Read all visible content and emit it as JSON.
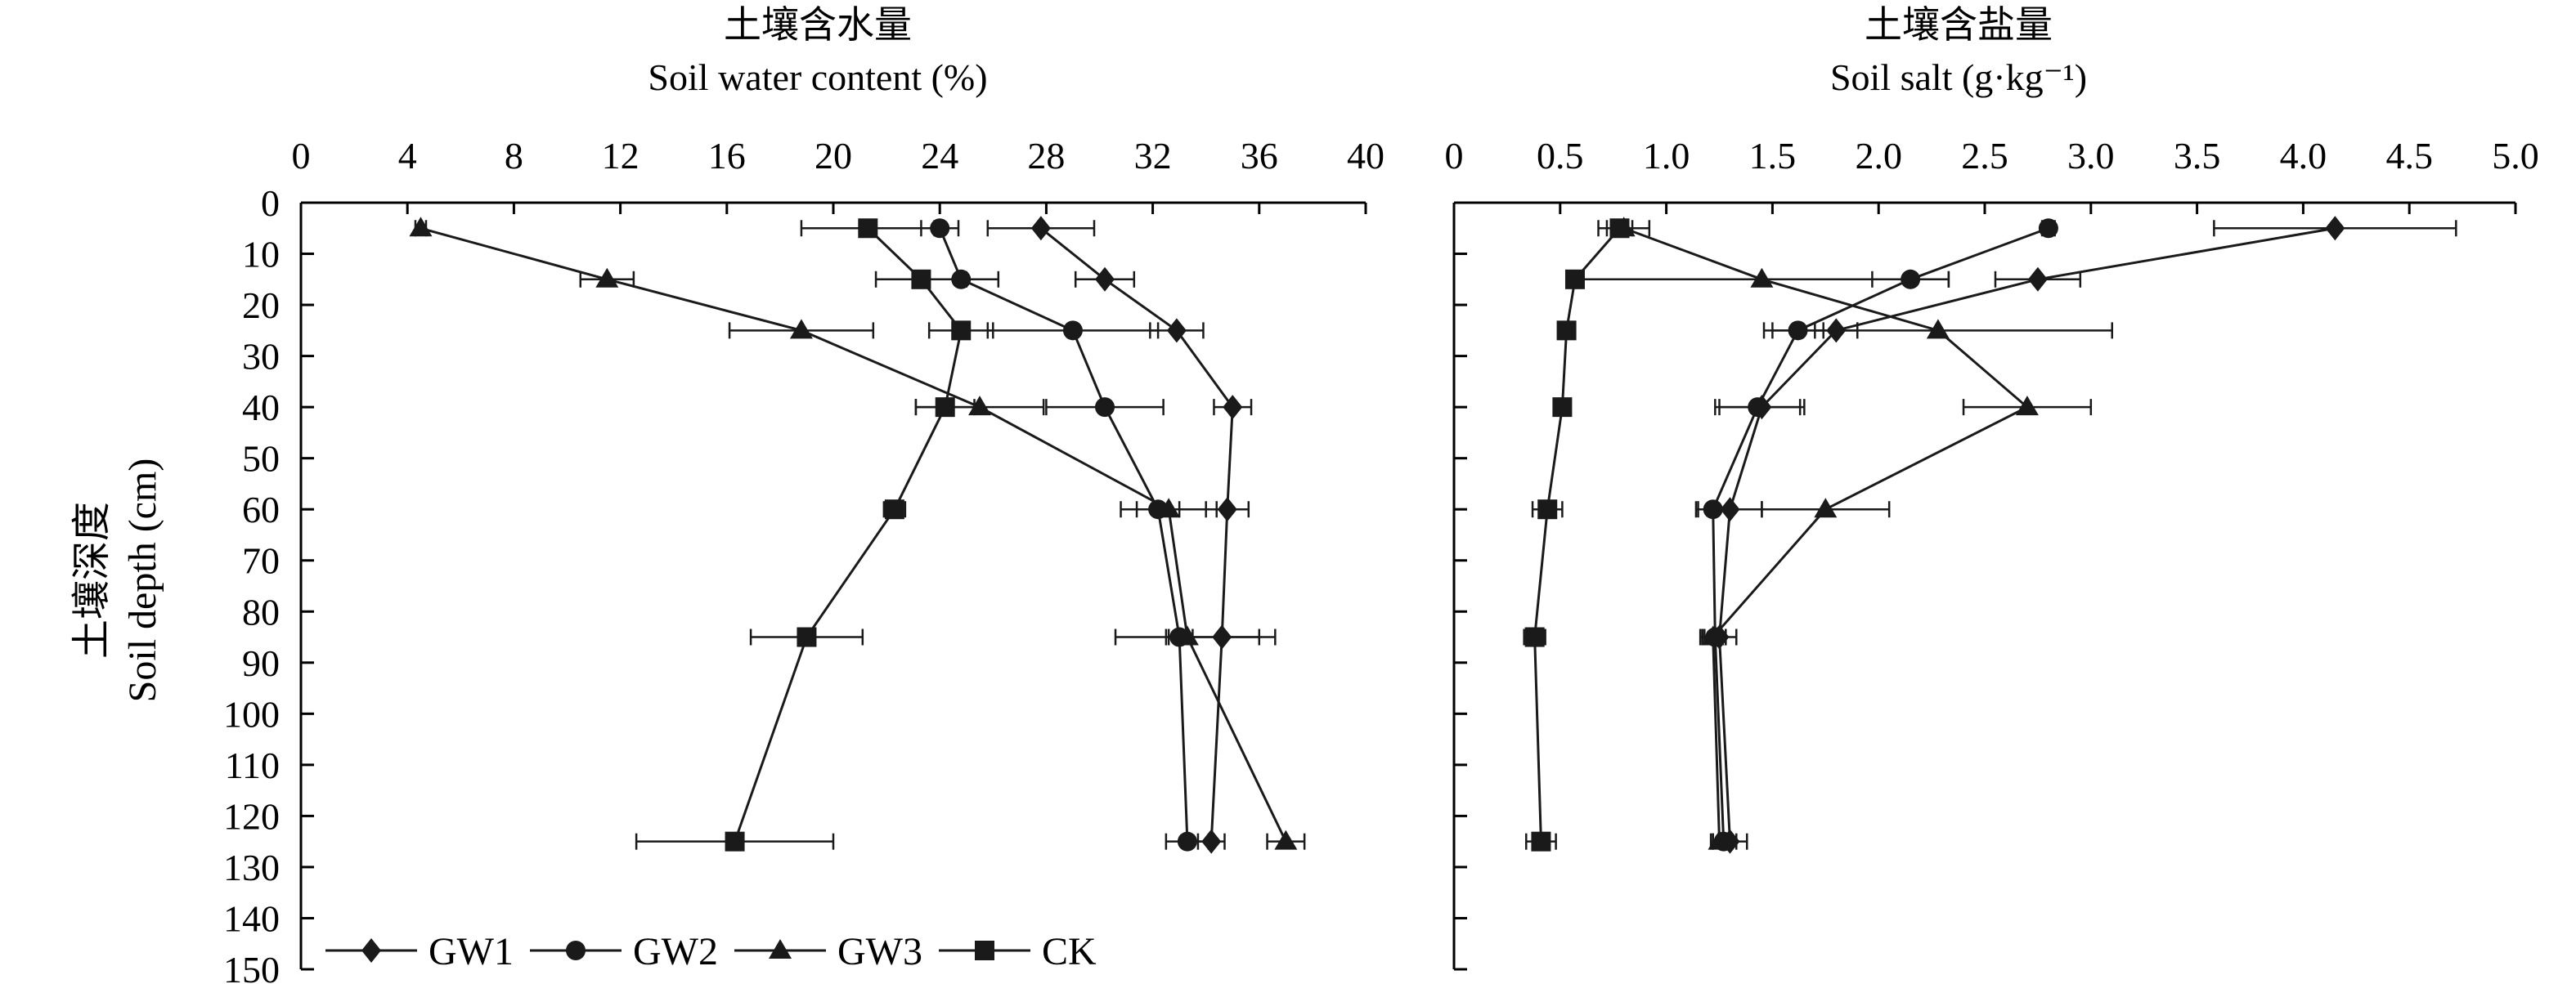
{
  "shared": {
    "ylabel_cn": "土壤深度",
    "ylabel_en": "Soil depth (cm)",
    "depth_ticks": [
      "0",
      "10",
      "20",
      "30",
      "40",
      "50",
      "60",
      "70",
      "80",
      "90",
      "100",
      "110",
      "120",
      "130",
      "140",
      "150"
    ]
  },
  "legend": [
    "GW1",
    "GW2",
    "GW3",
    "CK"
  ],
  "chart_data": [
    {
      "type": "line",
      "orientation": "depth-profile (x = value, y = depth, inverted)",
      "title_cn": "土壤含水量",
      "title_en": "Soil water content (%)",
      "xlim": [
        0,
        40
      ],
      "ylim": [
        0,
        150
      ],
      "x_ticks": [
        "0",
        "4",
        "8",
        "12",
        "16",
        "20",
        "24",
        "28",
        "32",
        "36",
        "40"
      ],
      "depths": [
        5,
        15,
        25,
        40,
        60,
        85,
        125
      ],
      "series": [
        {
          "name": "GW1",
          "marker": "diamond",
          "values": [
            27.8,
            30.2,
            32.9,
            35.0,
            34.8,
            34.6,
            34.2
          ],
          "errors": [
            2.0,
            1.1,
            1.0,
            0.7,
            0.8,
            2.0,
            0.5
          ]
        },
        {
          "name": "GW2",
          "marker": "circle",
          "values": [
            24.0,
            24.8,
            29.0,
            30.2,
            32.2,
            33.0,
            33.3
          ],
          "errors": [
            0.7,
            1.4,
            3.2,
            2.2,
            0.8,
            0.5,
            0.8
          ]
        },
        {
          "name": "GW3",
          "marker": "triangle",
          "values": [
            4.5,
            11.5,
            18.8,
            25.5,
            32.6,
            33.3,
            37.0
          ],
          "errors": [
            0.2,
            1.0,
            2.7,
            2.4,
            1.8,
            2.7,
            0.7
          ]
        },
        {
          "name": "CK",
          "marker": "square",
          "values": [
            21.3,
            23.3,
            24.8,
            24.2,
            22.3,
            19.0,
            16.3
          ],
          "errors": [
            2.5,
            1.7,
            1.2,
            1.1,
            0.4,
            2.1,
            3.7
          ]
        }
      ]
    },
    {
      "type": "line",
      "orientation": "depth-profile (x = value, y = depth, inverted)",
      "title_cn": "土壤含盐量",
      "title_en": "Soil salt (g·kg⁻¹)",
      "xlim": [
        0,
        5.0
      ],
      "ylim": [
        0,
        150
      ],
      "x_ticks": [
        "0",
        "0.5",
        "1.0",
        "1.5",
        "2.0",
        "2.5",
        "3.0",
        "3.5",
        "4.0",
        "4.5",
        "5.0"
      ],
      "depths": [
        5,
        15,
        25,
        40,
        60,
        85,
        125
      ],
      "series": [
        {
          "name": "GW1",
          "marker": "diamond",
          "values": [
            4.15,
            2.75,
            1.8,
            1.45,
            1.3,
            1.25,
            1.3
          ],
          "errors": [
            0.57,
            0.2,
            0.1,
            0.2,
            0.15,
            0.08,
            0.08
          ]
        },
        {
          "name": "GW2",
          "marker": "circle",
          "values": [
            2.8,
            2.15,
            1.62,
            1.43,
            1.22,
            1.23,
            1.27
          ],
          "errors": [
            0.03,
            0.18,
            0.12,
            0.2,
            0.08,
            0.05,
            0.06
          ]
        },
        {
          "name": "GW3",
          "marker": "triangle",
          "values": [
            0.8,
            1.45,
            2.28,
            2.7,
            1.75,
            1.22,
            1.25
          ],
          "errors": [
            0.12,
            0.88,
            0.82,
            0.3,
            0.3,
            0.06,
            0.03
          ]
        },
        {
          "name": "CK",
          "marker": "square",
          "values": [
            0.78,
            0.57,
            0.53,
            0.51,
            0.44,
            0.38,
            0.41
          ],
          "errors": [
            0.06,
            0.03,
            0.01,
            0.01,
            0.07,
            0.05,
            0.07
          ]
        }
      ]
    }
  ]
}
